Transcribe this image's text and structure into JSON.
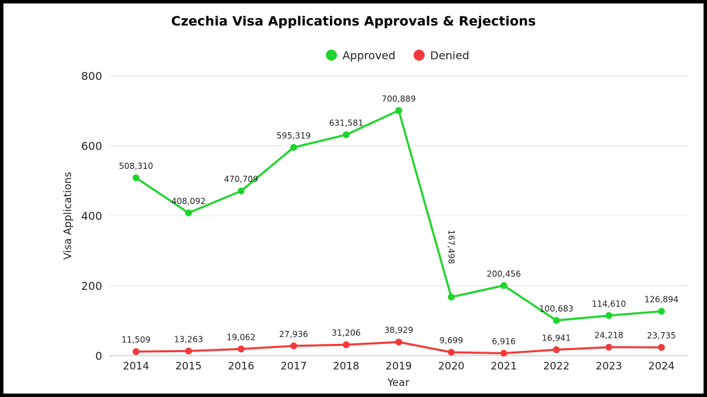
{
  "chart_data": {
    "type": "line",
    "title": "Czechia Visa Applications Approvals & Rejections",
    "xlabel": "Year",
    "ylabel": "Visa Applications",
    "categories": [
      "2014",
      "2015",
      "2016",
      "2017",
      "2018",
      "2019",
      "2020",
      "2021",
      "2022",
      "2023",
      "2024"
    ],
    "ylim": [
      0,
      800
    ],
    "y_unit_note_thousands": true,
    "yticks": [
      "0",
      "200",
      "400",
      "600",
      "800"
    ],
    "grid": true,
    "legend": "top-center",
    "series": [
      {
        "name": "Approved",
        "color": "#1ed42b",
        "values": [
          508310,
          408092,
          470709,
          595319,
          631581,
          700889,
          167498,
          200456,
          100683,
          114610,
          126894
        ],
        "labels": [
          "508,310",
          "408,092",
          "470,709",
          "595,319",
          "631,581",
          "700,889",
          "167,498",
          "200,456",
          "100,683",
          "114,610",
          "126,894"
        ]
      },
      {
        "name": "Denied",
        "color": "#f23a3a",
        "values": [
          11509,
          13263,
          19062,
          27936,
          31206,
          38929,
          9699,
          6916,
          16941,
          24218,
          23735
        ],
        "labels": [
          "11,509",
          "13,263",
          "19,062",
          "27,936",
          "31,206",
          "38,929",
          "9,699",
          "6,916",
          "16,941",
          "24,218",
          "23,735"
        ]
      }
    ]
  }
}
